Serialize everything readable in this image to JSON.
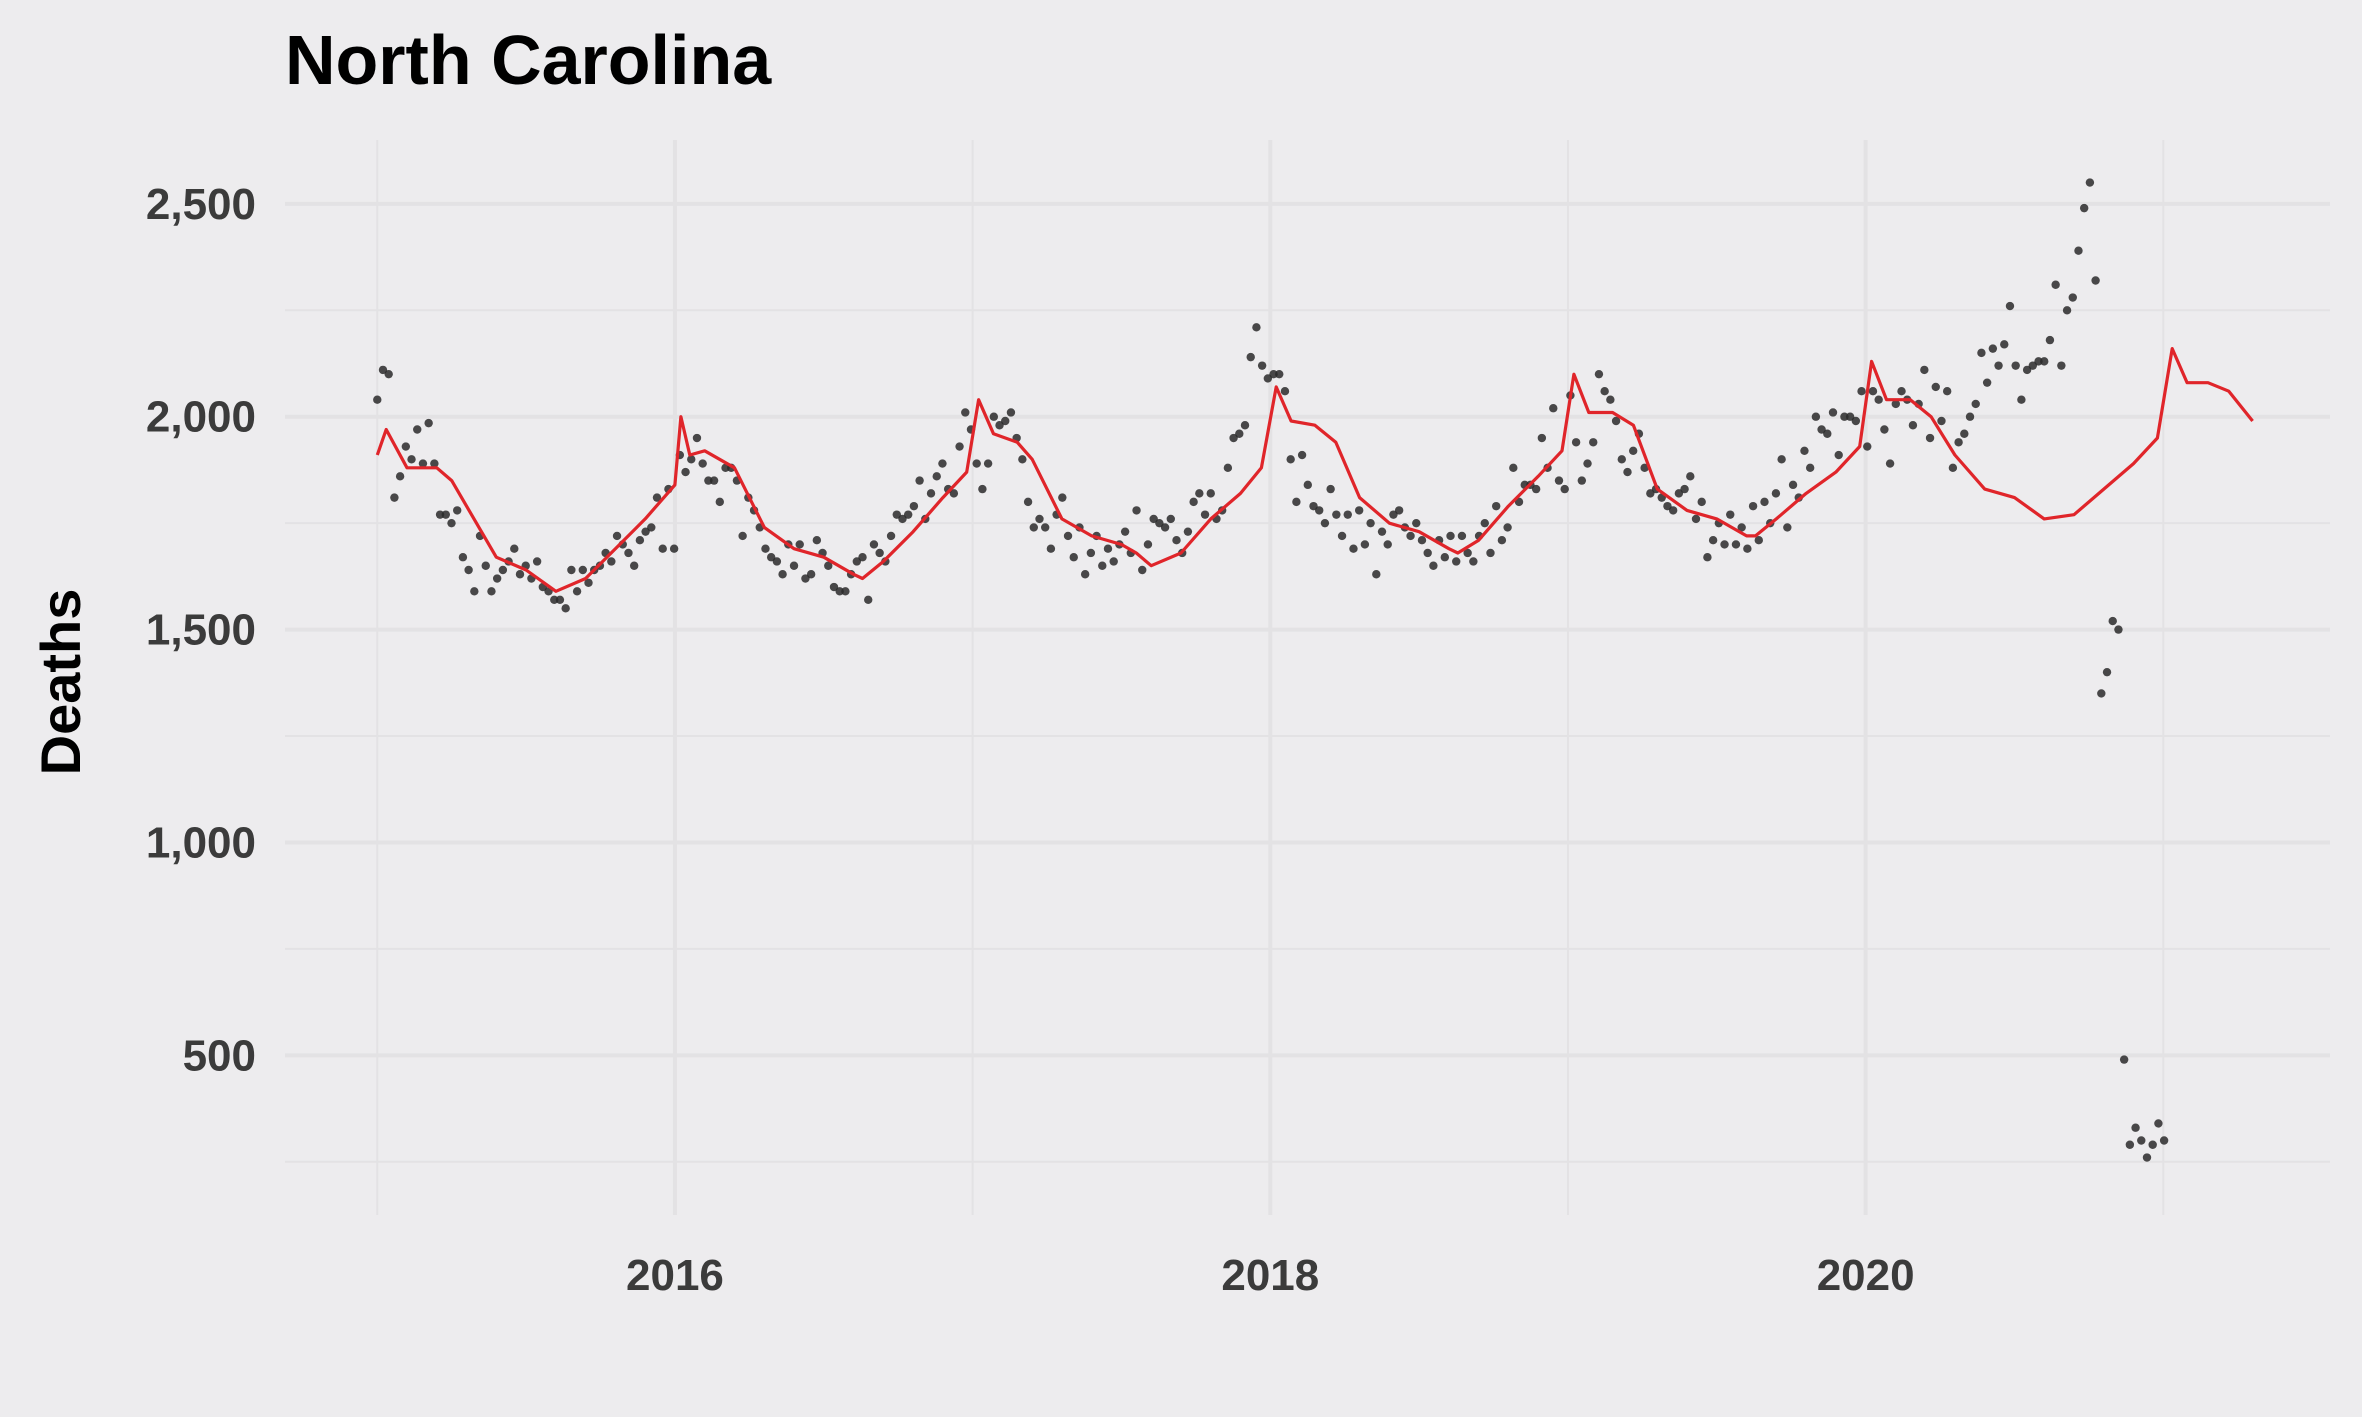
{
  "chart_data": {
    "type": "scatter",
    "title": "North Carolina",
    "xlabel": "",
    "ylabel": "Deaths",
    "xlim": [
      2014.69,
      2021.56
    ],
    "ylim": [
      125,
      2650
    ],
    "x_ticks": [
      2016,
      2018,
      2020
    ],
    "x_tick_labels": [
      "2016",
      "2018",
      "2020"
    ],
    "x_minor_ticks": [
      2015,
      2017,
      2019,
      2021
    ],
    "y_ticks": [
      500,
      1000,
      1500,
      2000,
      2500
    ],
    "y_tick_labels": [
      "500",
      "1,000",
      "1,500",
      "2,000",
      "2,500"
    ],
    "y_minor_ticks": [
      250,
      750,
      1250,
      1750,
      2250
    ],
    "grid": true,
    "colors": {
      "background": "#edecee",
      "grid": "#e3e2e4",
      "points": "#2a2a2a",
      "line": "#e0252a"
    },
    "series": [
      {
        "kind": "points",
        "x_start": 2015.0,
        "x_step": 0.019178,
        "values": [
          2040,
          2110,
          2100,
          1810,
          1860,
          1930,
          1900,
          1970,
          1890,
          1985,
          1890,
          1770,
          1770,
          1750,
          1780,
          1670,
          1640,
          1590,
          1720,
          1650,
          1590,
          1620,
          1640,
          1660,
          1690,
          1630,
          1650,
          1620,
          1660,
          1600,
          1590,
          1570,
          1570,
          1550,
          1640,
          1590,
          1640,
          1610,
          1640,
          1650,
          1680,
          1660,
          1720,
          1700,
          1680,
          1650,
          1710,
          1730,
          1740,
          1810,
          1690,
          1830,
          1690,
          1910,
          1870,
          1900,
          1950,
          1890,
          1850,
          1850,
          1800,
          1880,
          1880,
          1850,
          1720,
          1810,
          1780,
          1740,
          1690,
          1670,
          1660,
          1630,
          1700,
          1650,
          1700,
          1620,
          1630,
          1710,
          1680,
          1650,
          1600,
          1590,
          1590,
          1630,
          1660,
          1670,
          1570,
          1700,
          1680,
          1660,
          1720,
          1770,
          1760,
          1770,
          1790,
          1850,
          1760,
          1820,
          1860,
          1890,
          1830,
          1820,
          1930,
          2010,
          1970,
          1890,
          1830,
          1890,
          2000,
          1980,
          1990,
          2010,
          1950,
          1900,
          1800,
          1740,
          1760,
          1740,
          1690,
          1770,
          1810,
          1720,
          1670,
          1740,
          1630,
          1680,
          1720,
          1650,
          1690,
          1660,
          1700,
          1730,
          1680,
          1780,
          1640,
          1700,
          1760,
          1750,
          1740,
          1760,
          1710,
          1680,
          1730,
          1800,
          1820,
          1770,
          1820,
          1760,
          1780,
          1880,
          1950,
          1960,
          1980,
          2140,
          2210,
          2120,
          2090,
          2100,
          2100,
          2060,
          1900,
          1800,
          1910,
          1840,
          1790,
          1780,
          1750,
          1830,
          1770,
          1720,
          1770,
          1690,
          1780,
          1700,
          1750,
          1630,
          1730,
          1700,
          1770,
          1780,
          1740,
          1720,
          1750,
          1710,
          1680,
          1650,
          1710,
          1670,
          1720,
          1660,
          1720,
          1680,
          1660,
          1720,
          1750,
          1680,
          1790,
          1710,
          1740,
          1880,
          1800,
          1840,
          1840,
          1830,
          1950,
          1880,
          2020,
          1850,
          1830,
          2050,
          1940,
          1850,
          1890,
          1940,
          2100,
          2060,
          2040,
          1990,
          1900,
          1870,
          1920,
          1960,
          1880,
          1820,
          1830,
          1810,
          1790,
          1780,
          1820,
          1830,
          1860,
          1760,
          1800,
          1670,
          1710,
          1750,
          1700,
          1770,
          1700,
          1740,
          1690,
          1790,
          1710,
          1800,
          1750,
          1820,
          1900,
          1740,
          1840,
          1810,
          1920,
          1880,
          2000,
          1970,
          1960,
          2010,
          1910,
          2000,
          2000,
          1990,
          2060,
          1930,
          2060,
          2040,
          1970,
          1890,
          2030,
          2060,
          2040,
          1980,
          2030,
          2110,
          1950,
          2070,
          1990,
          2060,
          1880,
          1940,
          1960,
          2000,
          2030,
          2150,
          2080,
          2160,
          2120,
          2170,
          2260,
          2120,
          2040,
          2110,
          2120,
          2130,
          2130,
          2180,
          2310,
          2120,
          2250,
          2280,
          2390,
          2490,
          2550,
          2320,
          1350,
          1400,
          1520,
          1500,
          490,
          290,
          330,
          300,
          260,
          290,
          340,
          300
        ]
      },
      {
        "kind": "line",
        "x": [
          2015.0,
          2015.03,
          2015.1,
          2015.2,
          2015.25,
          2015.4,
          2015.5,
          2015.6,
          2015.7,
          2015.8,
          2015.9,
          2016.0,
          2016.02,
          2016.05,
          2016.1,
          2016.2,
          2016.3,
          2016.4,
          2016.5,
          2016.6,
          2016.63,
          2016.7,
          2016.8,
          2016.9,
          2016.98,
          2017.02,
          2017.07,
          2017.15,
          2017.2,
          2017.3,
          2017.4,
          2017.5,
          2017.55,
          2017.6,
          2017.7,
          2017.8,
          2017.9,
          2017.97,
          2018.02,
          2018.07,
          2018.15,
          2018.22,
          2018.3,
          2018.4,
          2018.5,
          2018.6,
          2018.63,
          2018.7,
          2018.8,
          2018.9,
          2018.98,
          2019.02,
          2019.07,
          2019.15,
          2019.22,
          2019.3,
          2019.4,
          2019.5,
          2019.6,
          2019.63,
          2019.7,
          2019.8,
          2019.9,
          2019.98,
          2020.02,
          2020.07,
          2020.15,
          2020.22,
          2020.3,
          2020.4,
          2020.5,
          2020.6,
          2020.7,
          2020.8,
          2020.9,
          2020.98,
          2021.03,
          2021.08,
          2021.15,
          2021.22,
          2021.3
        ],
        "values": [
          1910,
          1970,
          1880,
          1880,
          1850,
          1670,
          1640,
          1590,
          1620,
          1690,
          1760,
          1840,
          2000,
          1910,
          1920,
          1880,
          1740,
          1690,
          1670,
          1630,
          1620,
          1660,
          1730,
          1810,
          1870,
          2040,
          1960,
          1940,
          1900,
          1760,
          1720,
          1700,
          1680,
          1650,
          1680,
          1760,
          1820,
          1880,
          2070,
          1990,
          1980,
          1940,
          1810,
          1750,
          1730,
          1690,
          1680,
          1710,
          1790,
          1860,
          1920,
          2100,
          2010,
          2010,
          1980,
          1830,
          1780,
          1760,
          1720,
          1720,
          1760,
          1820,
          1870,
          1930,
          2130,
          2040,
          2040,
          2000,
          1910,
          1830,
          1810,
          1760,
          1770,
          1830,
          1890,
          1950,
          2160,
          2080,
          2080,
          2060,
          1990
        ]
      }
    ]
  }
}
